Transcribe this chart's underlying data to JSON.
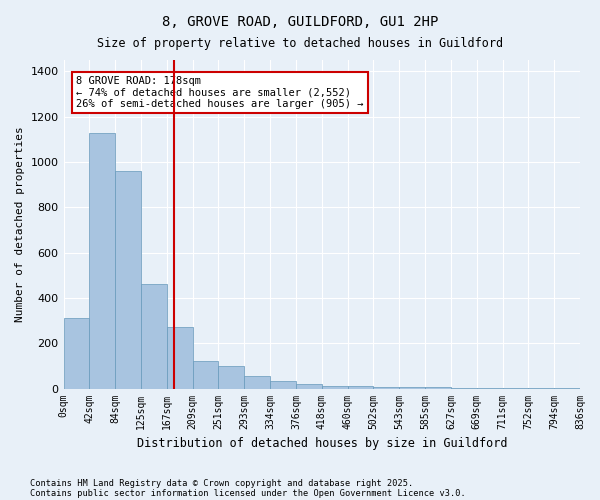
{
  "title1": "8, GROVE ROAD, GUILDFORD, GU1 2HP",
  "title2": "Size of property relative to detached houses in Guildford",
  "xlabel": "Distribution of detached houses by size in Guildford",
  "ylabel": "Number of detached properties",
  "bins": [
    "0sqm",
    "42sqm",
    "84sqm",
    "125sqm",
    "167sqm",
    "209sqm",
    "251sqm",
    "293sqm",
    "334sqm",
    "376sqm",
    "418sqm",
    "460sqm",
    "502sqm",
    "543sqm",
    "585sqm",
    "627sqm",
    "669sqm",
    "711sqm",
    "752sqm",
    "794sqm",
    "836sqm"
  ],
  "bar_heights": [
    310,
    1130,
    960,
    460,
    270,
    120,
    100,
    55,
    35,
    20,
    10,
    10,
    8,
    8,
    5,
    3,
    2,
    1,
    1,
    1
  ],
  "bar_color": "#a8c4e0",
  "bar_edge_color": "#6699bb",
  "vline_x": 4.15,
  "vline_color": "#cc0000",
  "annotation_text": "8 GROVE ROAD: 178sqm\n← 74% of detached houses are smaller (2,552)\n26% of semi-detached houses are larger (905) →",
  "annotation_box_color": "#ffffff",
  "annotation_edge_color": "#cc0000",
  "ylim": [
    0,
    1450
  ],
  "yticks": [
    0,
    200,
    400,
    600,
    800,
    1000,
    1200,
    1400
  ],
  "bg_color": "#e8f0f8",
  "grid_color": "#ffffff",
  "footer1": "Contains HM Land Registry data © Crown copyright and database right 2025.",
  "footer2": "Contains public sector information licensed under the Open Government Licence v3.0."
}
